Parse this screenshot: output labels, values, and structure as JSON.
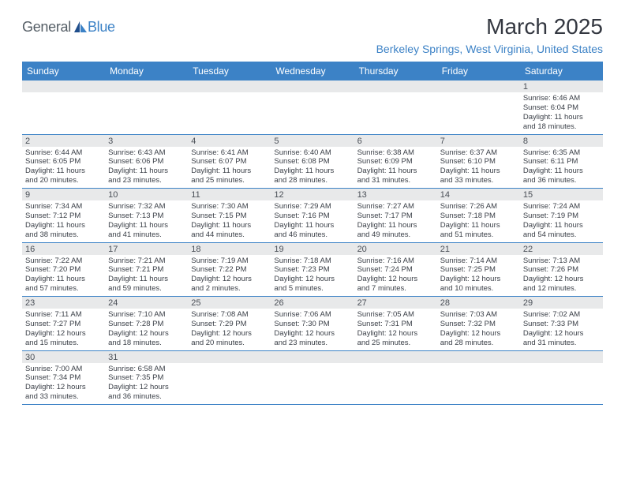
{
  "logo": {
    "general": "General",
    "blue": "Blue"
  },
  "title": "March 2025",
  "location": "Berkeley Springs, West Virginia, United States",
  "colors": {
    "header_bg": "#3c82c6",
    "header_text": "#ffffff",
    "daynum_bg": "#e8e9ea",
    "text": "#3a3f47",
    "rule": "#3c82c6",
    "title_color": "#333740"
  },
  "weekdays": [
    "Sunday",
    "Monday",
    "Tuesday",
    "Wednesday",
    "Thursday",
    "Friday",
    "Saturday"
  ],
  "weeks": [
    [
      null,
      null,
      null,
      null,
      null,
      null,
      {
        "n": "1",
        "sr": "Sunrise: 6:46 AM",
        "ss": "Sunset: 6:04 PM",
        "dl1": "Daylight: 11 hours",
        "dl2": "and 18 minutes."
      }
    ],
    [
      {
        "n": "2",
        "sr": "Sunrise: 6:44 AM",
        "ss": "Sunset: 6:05 PM",
        "dl1": "Daylight: 11 hours",
        "dl2": "and 20 minutes."
      },
      {
        "n": "3",
        "sr": "Sunrise: 6:43 AM",
        "ss": "Sunset: 6:06 PM",
        "dl1": "Daylight: 11 hours",
        "dl2": "and 23 minutes."
      },
      {
        "n": "4",
        "sr": "Sunrise: 6:41 AM",
        "ss": "Sunset: 6:07 PM",
        "dl1": "Daylight: 11 hours",
        "dl2": "and 25 minutes."
      },
      {
        "n": "5",
        "sr": "Sunrise: 6:40 AM",
        "ss": "Sunset: 6:08 PM",
        "dl1": "Daylight: 11 hours",
        "dl2": "and 28 minutes."
      },
      {
        "n": "6",
        "sr": "Sunrise: 6:38 AM",
        "ss": "Sunset: 6:09 PM",
        "dl1": "Daylight: 11 hours",
        "dl2": "and 31 minutes."
      },
      {
        "n": "7",
        "sr": "Sunrise: 6:37 AM",
        "ss": "Sunset: 6:10 PM",
        "dl1": "Daylight: 11 hours",
        "dl2": "and 33 minutes."
      },
      {
        "n": "8",
        "sr": "Sunrise: 6:35 AM",
        "ss": "Sunset: 6:11 PM",
        "dl1": "Daylight: 11 hours",
        "dl2": "and 36 minutes."
      }
    ],
    [
      {
        "n": "9",
        "sr": "Sunrise: 7:34 AM",
        "ss": "Sunset: 7:12 PM",
        "dl1": "Daylight: 11 hours",
        "dl2": "and 38 minutes."
      },
      {
        "n": "10",
        "sr": "Sunrise: 7:32 AM",
        "ss": "Sunset: 7:13 PM",
        "dl1": "Daylight: 11 hours",
        "dl2": "and 41 minutes."
      },
      {
        "n": "11",
        "sr": "Sunrise: 7:30 AM",
        "ss": "Sunset: 7:15 PM",
        "dl1": "Daylight: 11 hours",
        "dl2": "and 44 minutes."
      },
      {
        "n": "12",
        "sr": "Sunrise: 7:29 AM",
        "ss": "Sunset: 7:16 PM",
        "dl1": "Daylight: 11 hours",
        "dl2": "and 46 minutes."
      },
      {
        "n": "13",
        "sr": "Sunrise: 7:27 AM",
        "ss": "Sunset: 7:17 PM",
        "dl1": "Daylight: 11 hours",
        "dl2": "and 49 minutes."
      },
      {
        "n": "14",
        "sr": "Sunrise: 7:26 AM",
        "ss": "Sunset: 7:18 PM",
        "dl1": "Daylight: 11 hours",
        "dl2": "and 51 minutes."
      },
      {
        "n": "15",
        "sr": "Sunrise: 7:24 AM",
        "ss": "Sunset: 7:19 PM",
        "dl1": "Daylight: 11 hours",
        "dl2": "and 54 minutes."
      }
    ],
    [
      {
        "n": "16",
        "sr": "Sunrise: 7:22 AM",
        "ss": "Sunset: 7:20 PM",
        "dl1": "Daylight: 11 hours",
        "dl2": "and 57 minutes."
      },
      {
        "n": "17",
        "sr": "Sunrise: 7:21 AM",
        "ss": "Sunset: 7:21 PM",
        "dl1": "Daylight: 11 hours",
        "dl2": "and 59 minutes."
      },
      {
        "n": "18",
        "sr": "Sunrise: 7:19 AM",
        "ss": "Sunset: 7:22 PM",
        "dl1": "Daylight: 12 hours",
        "dl2": "and 2 minutes."
      },
      {
        "n": "19",
        "sr": "Sunrise: 7:18 AM",
        "ss": "Sunset: 7:23 PM",
        "dl1": "Daylight: 12 hours",
        "dl2": "and 5 minutes."
      },
      {
        "n": "20",
        "sr": "Sunrise: 7:16 AM",
        "ss": "Sunset: 7:24 PM",
        "dl1": "Daylight: 12 hours",
        "dl2": "and 7 minutes."
      },
      {
        "n": "21",
        "sr": "Sunrise: 7:14 AM",
        "ss": "Sunset: 7:25 PM",
        "dl1": "Daylight: 12 hours",
        "dl2": "and 10 minutes."
      },
      {
        "n": "22",
        "sr": "Sunrise: 7:13 AM",
        "ss": "Sunset: 7:26 PM",
        "dl1": "Daylight: 12 hours",
        "dl2": "and 12 minutes."
      }
    ],
    [
      {
        "n": "23",
        "sr": "Sunrise: 7:11 AM",
        "ss": "Sunset: 7:27 PM",
        "dl1": "Daylight: 12 hours",
        "dl2": "and 15 minutes."
      },
      {
        "n": "24",
        "sr": "Sunrise: 7:10 AM",
        "ss": "Sunset: 7:28 PM",
        "dl1": "Daylight: 12 hours",
        "dl2": "and 18 minutes."
      },
      {
        "n": "25",
        "sr": "Sunrise: 7:08 AM",
        "ss": "Sunset: 7:29 PM",
        "dl1": "Daylight: 12 hours",
        "dl2": "and 20 minutes."
      },
      {
        "n": "26",
        "sr": "Sunrise: 7:06 AM",
        "ss": "Sunset: 7:30 PM",
        "dl1": "Daylight: 12 hours",
        "dl2": "and 23 minutes."
      },
      {
        "n": "27",
        "sr": "Sunrise: 7:05 AM",
        "ss": "Sunset: 7:31 PM",
        "dl1": "Daylight: 12 hours",
        "dl2": "and 25 minutes."
      },
      {
        "n": "28",
        "sr": "Sunrise: 7:03 AM",
        "ss": "Sunset: 7:32 PM",
        "dl1": "Daylight: 12 hours",
        "dl2": "and 28 minutes."
      },
      {
        "n": "29",
        "sr": "Sunrise: 7:02 AM",
        "ss": "Sunset: 7:33 PM",
        "dl1": "Daylight: 12 hours",
        "dl2": "and 31 minutes."
      }
    ],
    [
      {
        "n": "30",
        "sr": "Sunrise: 7:00 AM",
        "ss": "Sunset: 7:34 PM",
        "dl1": "Daylight: 12 hours",
        "dl2": "and 33 minutes."
      },
      {
        "n": "31",
        "sr": "Sunrise: 6:58 AM",
        "ss": "Sunset: 7:35 PM",
        "dl1": "Daylight: 12 hours",
        "dl2": "and 36 minutes."
      },
      null,
      null,
      null,
      null,
      null
    ]
  ]
}
